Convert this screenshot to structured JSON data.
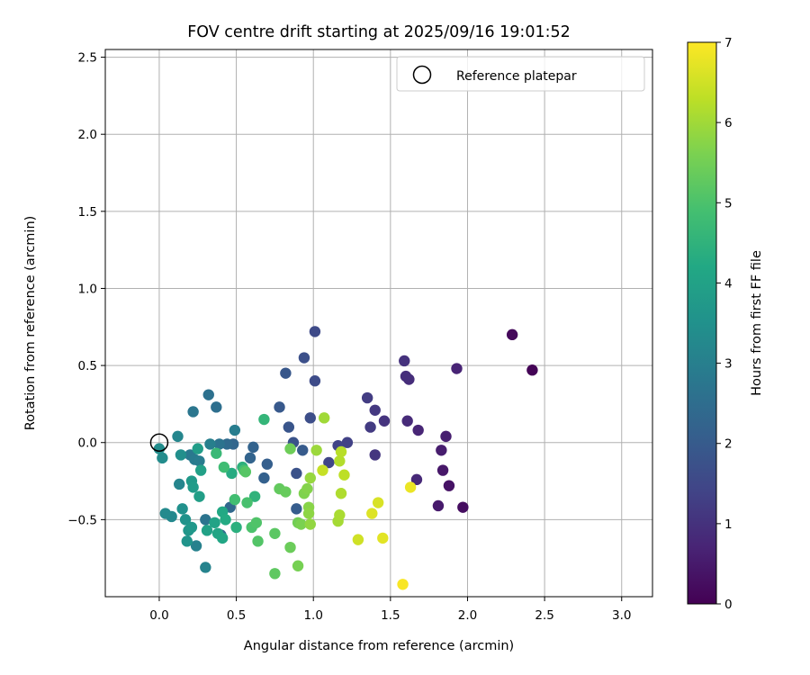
{
  "chart_data": {
    "type": "scatter",
    "title": "FOV centre drift starting at 2025/09/16 19:01:52",
    "xlabel": "Angular distance from reference (arcmin)",
    "ylabel": "Rotation from reference (arcmin)",
    "xlim": [
      -0.35,
      3.2
    ],
    "ylim": [
      -1.0,
      2.55
    ],
    "xticks": [
      0.0,
      0.5,
      1.0,
      1.5,
      2.0,
      2.5,
      3.0
    ],
    "xtick_labels": [
      "0.0",
      "0.5",
      "1.0",
      "1.5",
      "2.0",
      "2.5",
      "3.0"
    ],
    "yticks": [
      -0.5,
      0.0,
      0.5,
      1.0,
      1.5,
      2.0,
      2.5
    ],
    "ytick_labels": [
      "−0.5",
      "0.0",
      "0.5",
      "1.0",
      "1.5",
      "2.0",
      "2.5"
    ],
    "grid": true,
    "legend": {
      "position": "top-right",
      "label": "Reference platepar"
    },
    "reference_point": {
      "x": 0.0,
      "y": 0.0
    },
    "colorbar": {
      "label": "Hours from first FF file",
      "min": 0,
      "max": 7,
      "ticks": [
        0,
        1,
        2,
        3,
        4,
        5,
        6,
        7
      ],
      "tick_labels": [
        "0",
        "1",
        "2",
        "3",
        "4",
        "5",
        "6",
        "7"
      ],
      "colormap": "viridis"
    },
    "points": [
      {
        "x": 2.42,
        "y": 0.47,
        "t": 0.05
      },
      {
        "x": 2.29,
        "y": 0.7,
        "t": 0.15
      },
      {
        "x": 1.97,
        "y": -0.42,
        "t": 0.25
      },
      {
        "x": 1.88,
        "y": -0.28,
        "t": 0.35
      },
      {
        "x": 1.84,
        "y": -0.18,
        "t": 0.45
      },
      {
        "x": 1.81,
        "y": -0.41,
        "t": 0.5
      },
      {
        "x": 1.83,
        "y": -0.05,
        "t": 0.55
      },
      {
        "x": 1.86,
        "y": 0.04,
        "t": 0.6
      },
      {
        "x": 1.93,
        "y": 0.48,
        "t": 0.7
      },
      {
        "x": 1.68,
        "y": 0.08,
        "t": 0.75
      },
      {
        "x": 1.67,
        "y": -0.24,
        "t": 0.8
      },
      {
        "x": 1.61,
        "y": 0.14,
        "t": 0.85
      },
      {
        "x": 1.62,
        "y": 0.41,
        "t": 0.9
      },
      {
        "x": 1.6,
        "y": 0.43,
        "t": 0.95
      },
      {
        "x": 1.59,
        "y": 0.53,
        "t": 1.0
      },
      {
        "x": 1.46,
        "y": 0.14,
        "t": 1.05
      },
      {
        "x": 1.4,
        "y": -0.08,
        "t": 1.1
      },
      {
        "x": 1.4,
        "y": 0.21,
        "t": 1.15
      },
      {
        "x": 1.37,
        "y": 0.1,
        "t": 1.2
      },
      {
        "x": 1.35,
        "y": 0.29,
        "t": 1.25
      },
      {
        "x": 1.22,
        "y": 0.0,
        "t": 1.35
      },
      {
        "x": 1.16,
        "y": -0.02,
        "t": 1.4
      },
      {
        "x": 1.1,
        "y": -0.13,
        "t": 1.45
      },
      {
        "x": 1.01,
        "y": 0.72,
        "t": 1.55
      },
      {
        "x": 1.01,
        "y": 0.4,
        "t": 1.6
      },
      {
        "x": 0.98,
        "y": 0.16,
        "t": 1.65
      },
      {
        "x": 0.94,
        "y": 0.55,
        "t": 1.7
      },
      {
        "x": 0.89,
        "y": -0.2,
        "t": 1.75
      },
      {
        "x": 0.87,
        "y": 0.0,
        "t": 1.8
      },
      {
        "x": 0.84,
        "y": 0.1,
        "t": 1.85
      },
      {
        "x": 0.82,
        "y": 0.45,
        "t": 1.9
      },
      {
        "x": 0.78,
        "y": 0.23,
        "t": 1.95
      },
      {
        "x": 0.93,
        "y": -0.05,
        "t": 2.0
      },
      {
        "x": 0.89,
        "y": -0.43,
        "t": 2.05
      },
      {
        "x": 0.7,
        "y": -0.14,
        "t": 2.1
      },
      {
        "x": 0.68,
        "y": -0.23,
        "t": 2.15
      },
      {
        "x": 0.61,
        "y": -0.03,
        "t": 2.2
      },
      {
        "x": 0.59,
        "y": -0.1,
        "t": 2.25
      },
      {
        "x": 0.48,
        "y": -0.01,
        "t": 2.3
      },
      {
        "x": 0.46,
        "y": -0.42,
        "t": 2.35
      },
      {
        "x": 0.44,
        "y": -0.01,
        "t": 2.4
      },
      {
        "x": 0.4,
        "y": -0.6,
        "t": 2.45
      },
      {
        "x": 0.37,
        "y": 0.23,
        "t": 2.55
      },
      {
        "x": 0.32,
        "y": 0.31,
        "t": 2.6
      },
      {
        "x": 0.39,
        "y": -0.01,
        "t": 2.65
      },
      {
        "x": 0.3,
        "y": -0.5,
        "t": 2.7
      },
      {
        "x": 0.22,
        "y": 0.2,
        "t": 2.75
      },
      {
        "x": 0.2,
        "y": -0.08,
        "t": 2.8
      },
      {
        "x": 0.23,
        "y": -0.11,
        "t": 2.85
      },
      {
        "x": 0.26,
        "y": -0.12,
        "t": 2.9
      },
      {
        "x": 0.49,
        "y": 0.08,
        "t": 2.95
      },
      {
        "x": 0.33,
        "y": -0.01,
        "t": 3.0
      },
      {
        "x": 0.24,
        "y": -0.67,
        "t": 3.05
      },
      {
        "x": 0.3,
        "y": -0.81,
        "t": 3.1
      },
      {
        "x": 0.13,
        "y": -0.27,
        "t": 3.15
      },
      {
        "x": 0.12,
        "y": 0.04,
        "t": 3.2
      },
      {
        "x": 0.08,
        "y": -0.48,
        "t": 3.25
      },
      {
        "x": 0.04,
        "y": -0.46,
        "t": 3.3
      },
      {
        "x": 0.02,
        "y": -0.1,
        "t": 3.35
      },
      {
        "x": 0.0,
        "y": -0.04,
        "t": 3.4
      },
      {
        "x": 0.14,
        "y": -0.08,
        "t": 3.45
      },
      {
        "x": 0.15,
        "y": -0.43,
        "t": 3.5
      },
      {
        "x": 0.17,
        "y": -0.5,
        "t": 3.55
      },
      {
        "x": 0.18,
        "y": -0.64,
        "t": 3.6
      },
      {
        "x": 0.19,
        "y": -0.57,
        "t": 3.65
      },
      {
        "x": 0.21,
        "y": -0.55,
        "t": 3.7
      },
      {
        "x": 0.21,
        "y": -0.25,
        "t": 3.75
      },
      {
        "x": 0.22,
        "y": -0.29,
        "t": 3.8
      },
      {
        "x": 0.25,
        "y": -0.04,
        "t": 3.85
      },
      {
        "x": 0.26,
        "y": -0.35,
        "t": 3.9
      },
      {
        "x": 0.27,
        "y": -0.18,
        "t": 3.95
      },
      {
        "x": 0.31,
        "y": -0.57,
        "t": 4.0
      },
      {
        "x": 0.36,
        "y": -0.52,
        "t": 4.05
      },
      {
        "x": 0.38,
        "y": -0.59,
        "t": 4.1
      },
      {
        "x": 0.41,
        "y": -0.62,
        "t": 4.15
      },
      {
        "x": 0.41,
        "y": -0.45,
        "t": 4.2
      },
      {
        "x": 0.43,
        "y": -0.5,
        "t": 4.25
      },
      {
        "x": 0.47,
        "y": -0.2,
        "t": 4.3
      },
      {
        "x": 0.5,
        "y": -0.55,
        "t": 4.4
      },
      {
        "x": 0.54,
        "y": -0.16,
        "t": 4.45
      },
      {
        "x": 0.62,
        "y": -0.35,
        "t": 4.5
      },
      {
        "x": 0.68,
        "y": 0.15,
        "t": 4.6
      },
      {
        "x": 0.37,
        "y": -0.07,
        "t": 4.7
      },
      {
        "x": 0.42,
        "y": -0.16,
        "t": 4.8
      },
      {
        "x": 0.49,
        "y": -0.37,
        "t": 4.85
      },
      {
        "x": 0.55,
        "y": -0.18,
        "t": 4.9
      },
      {
        "x": 0.57,
        "y": -0.39,
        "t": 4.95
      },
      {
        "x": 0.6,
        "y": -0.55,
        "t": 5.0
      },
      {
        "x": 0.63,
        "y": -0.52,
        "t": 5.05
      },
      {
        "x": 0.64,
        "y": -0.64,
        "t": 5.1
      },
      {
        "x": 0.56,
        "y": -0.19,
        "t": 5.15
      },
      {
        "x": 0.75,
        "y": -0.59,
        "t": 5.2
      },
      {
        "x": 0.75,
        "y": -0.85,
        "t": 5.25
      },
      {
        "x": 0.78,
        "y": -0.3,
        "t": 5.3
      },
      {
        "x": 0.82,
        "y": -0.32,
        "t": 5.35
      },
      {
        "x": 0.85,
        "y": -0.68,
        "t": 5.4
      },
      {
        "x": 0.85,
        "y": -0.04,
        "t": 5.45
      },
      {
        "x": 0.9,
        "y": -0.52,
        "t": 5.5
      },
      {
        "x": 0.9,
        "y": -0.8,
        "t": 5.55
      },
      {
        "x": 0.92,
        "y": -0.53,
        "t": 5.6
      },
      {
        "x": 0.94,
        "y": -0.33,
        "t": 5.65
      },
      {
        "x": 0.96,
        "y": -0.3,
        "t": 5.7
      },
      {
        "x": 0.97,
        "y": -0.42,
        "t": 5.75
      },
      {
        "x": 0.97,
        "y": -0.46,
        "t": 5.8
      },
      {
        "x": 0.98,
        "y": -0.53,
        "t": 5.85
      },
      {
        "x": 0.98,
        "y": -0.23,
        "t": 5.9
      },
      {
        "x": 1.02,
        "y": -0.05,
        "t": 5.95
      },
      {
        "x": 1.07,
        "y": 0.16,
        "t": 6.0
      },
      {
        "x": 1.16,
        "y": -0.51,
        "t": 6.05
      },
      {
        "x": 1.17,
        "y": -0.47,
        "t": 6.1
      },
      {
        "x": 1.18,
        "y": -0.33,
        "t": 6.15
      },
      {
        "x": 1.17,
        "y": -0.12,
        "t": 6.2
      },
      {
        "x": 1.18,
        "y": -0.06,
        "t": 6.25
      },
      {
        "x": 1.2,
        "y": -0.21,
        "t": 6.3
      },
      {
        "x": 1.06,
        "y": -0.18,
        "t": 6.4
      },
      {
        "x": 1.29,
        "y": -0.63,
        "t": 6.5
      },
      {
        "x": 1.42,
        "y": -0.39,
        "t": 6.6
      },
      {
        "x": 1.38,
        "y": -0.46,
        "t": 6.65
      },
      {
        "x": 1.45,
        "y": -0.62,
        "t": 6.7
      },
      {
        "x": 1.63,
        "y": -0.29,
        "t": 6.8
      },
      {
        "x": 1.58,
        "y": -0.92,
        "t": 6.95
      }
    ]
  }
}
